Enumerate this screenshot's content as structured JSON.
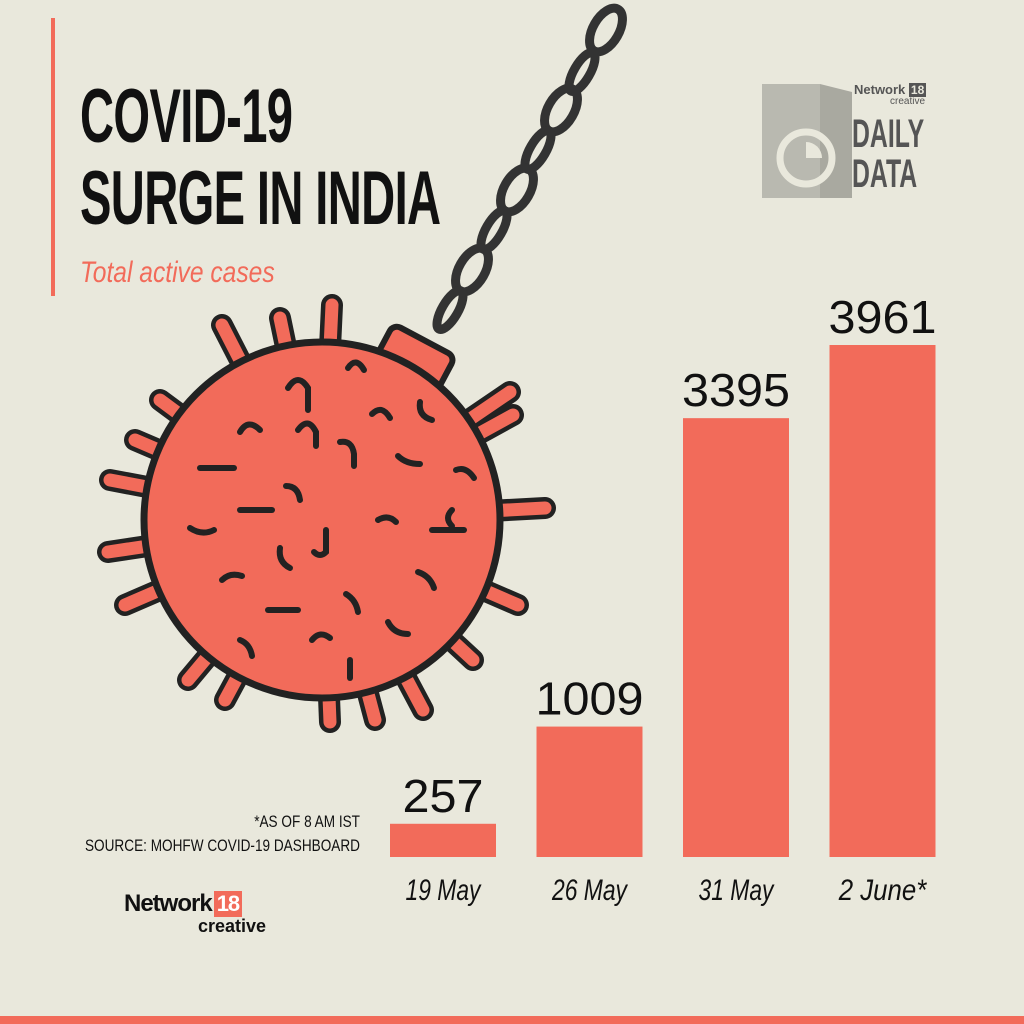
{
  "header": {
    "title_line1": "COVID-19",
    "title_line2": "SURGE IN INDIA",
    "subtitle": "Total active cases"
  },
  "branding": {
    "top_network": "Network",
    "top_network_num": "18",
    "top_creative": "creative",
    "daily": "DAILY",
    "data": "DATA",
    "bottom_network": "Network",
    "bottom_network_num": "18",
    "bottom_creative": "creative"
  },
  "footnotes": {
    "as_of": "*AS OF 8 AM IST",
    "source": "SOURCE: MOHFW COVID-19 DASHBOARD"
  },
  "colors": {
    "background": "#e9e8dc",
    "accent": "#f26b5a",
    "bar": "#f26b5a",
    "text": "#111111"
  },
  "icons": [
    "virus-wrecking-ball-icon",
    "chain-icon",
    "daily-data-logo-icon"
  ],
  "chart_data": {
    "type": "bar",
    "title": "COVID-19 SURGE IN INDIA",
    "subtitle": "Total active cases",
    "categories": [
      "19 May",
      "26 May",
      "31 May",
      "2 June*"
    ],
    "values": [
      257,
      1009,
      3395,
      3961
    ],
    "value_labels": [
      "257",
      "1009",
      "3395",
      "3961"
    ],
    "ylim": [
      0,
      3961
    ],
    "grid": false,
    "legend": "none"
  }
}
